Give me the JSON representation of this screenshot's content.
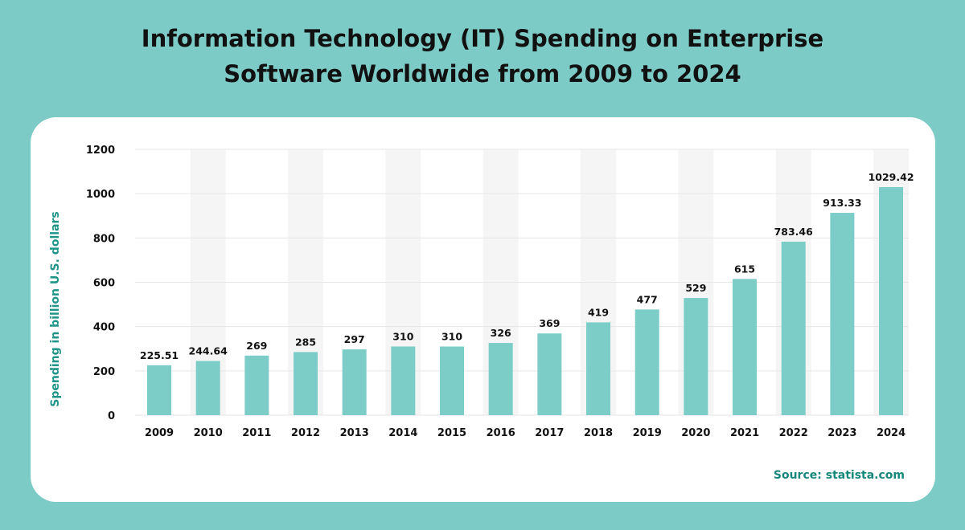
{
  "chart_data": {
    "type": "bar",
    "title": "Information Technology (IT) Spending on Enterprise Software Worldwide from 2009 to 2024",
    "title_lines": [
      "Information Technology (IT) Spending on Enterprise",
      "Software Worldwide from 2009 to 2024"
    ],
    "xlabel": "",
    "ylabel": "Spending in billion U.S. dollars",
    "ylim": [
      0,
      1200
    ],
    "yticks": [
      0,
      200,
      400,
      600,
      800,
      1000,
      1200
    ],
    "grid": true,
    "categories": [
      "2009",
      "2010",
      "2011",
      "2012",
      "2013",
      "2014",
      "2015",
      "2016",
      "2017",
      "2018",
      "2019",
      "2020",
      "2021",
      "2022",
      "2023",
      "2024"
    ],
    "values": [
      225.51,
      244.64,
      269,
      285,
      297,
      310,
      310,
      326,
      369,
      419,
      477,
      529,
      615,
      783.46,
      913.33,
      1029.42
    ],
    "data_labels": [
      "225.51",
      "244.64",
      "269",
      "285",
      "297",
      "310",
      "310",
      "326",
      "369",
      "419",
      "477",
      "529",
      "615",
      "783.46",
      "913.33",
      "1029.42"
    ],
    "source": "Source: statista.com",
    "colors": {
      "background": "#7dcbc7",
      "bar": "#7ccdc8",
      "ylabel": "#1f9488",
      "source": "#16877b",
      "band": "#f5f5f5"
    }
  }
}
